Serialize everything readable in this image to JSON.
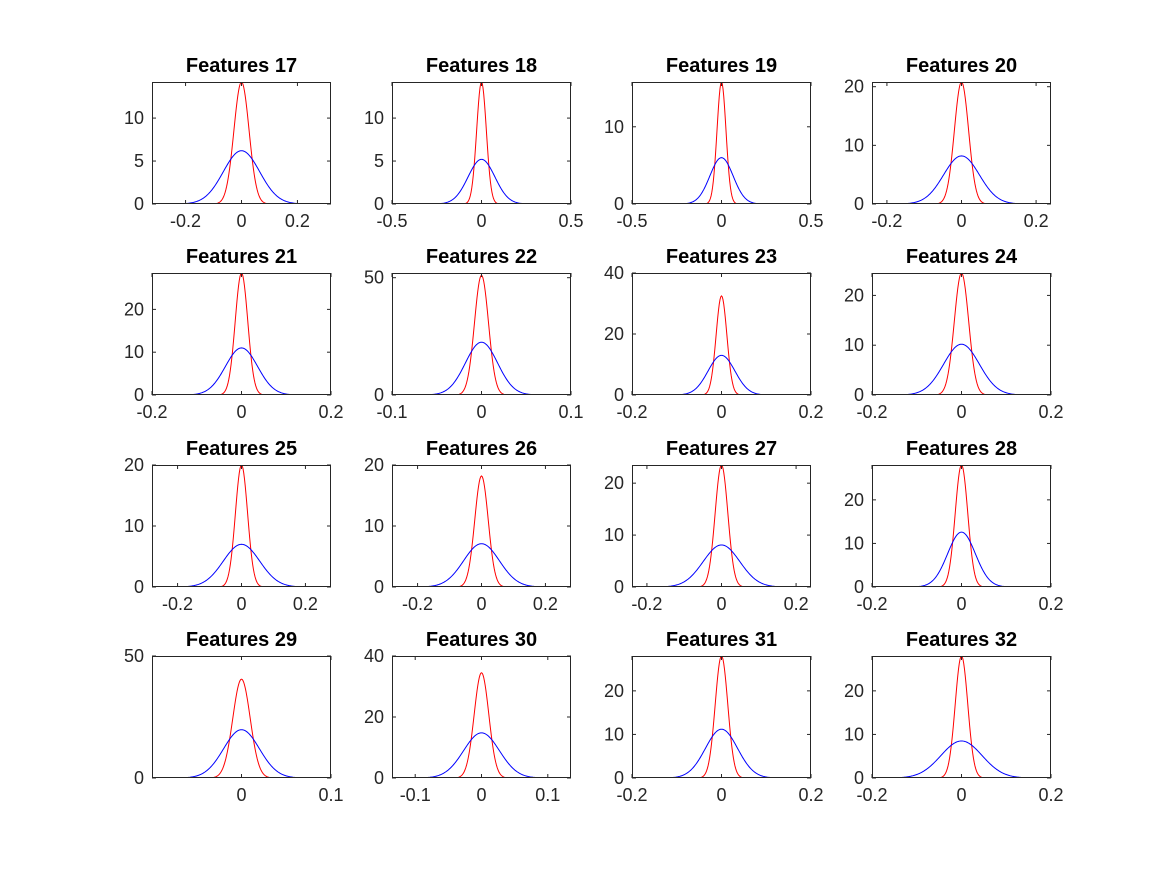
{
  "figure": {
    "background": "#ffffff"
  },
  "chart_data": [
    {
      "type": "line",
      "title": "Features 17",
      "xlim": [
        -0.32,
        0.32
      ],
      "ylim": [
        0,
        14.2
      ],
      "xticks": [
        -0.2,
        0,
        0.2
      ],
      "xtick_labels": [
        "-0.2",
        "0",
        "0.2"
      ],
      "yticks": [
        0,
        5,
        10
      ],
      "ytick_labels": [
        "0",
        "5",
        "10"
      ],
      "grid": false,
      "series": [
        {
          "color": "#ff0000",
          "mu": 0,
          "sigma": 0.027,
          "peak": 14.2
        },
        {
          "color": "#0000ff",
          "mu": 0,
          "sigma": 0.065,
          "peak": 6.2
        }
      ]
    },
    {
      "type": "line",
      "title": "Features 18",
      "xlim": [
        -0.5,
        0.5
      ],
      "ylim": [
        0,
        14.2
      ],
      "xticks": [
        -0.5,
        0,
        0.5
      ],
      "xtick_labels": [
        "-0.5",
        "0",
        "0.5"
      ],
      "yticks": [
        0,
        5,
        10
      ],
      "ytick_labels": [
        "0",
        "5",
        "10"
      ],
      "grid": false,
      "series": [
        {
          "color": "#ff0000",
          "mu": 0,
          "sigma": 0.027,
          "peak": 14.2
        },
        {
          "color": "#0000ff",
          "mu": 0,
          "sigma": 0.075,
          "peak": 5.2
        }
      ]
    },
    {
      "type": "line",
      "title": "Features 19",
      "xlim": [
        -0.5,
        0.5
      ],
      "ylim": [
        0,
        15.8
      ],
      "xticks": [
        -0.5,
        0,
        0.5
      ],
      "xtick_labels": [
        "-0.5",
        "0",
        "0.5"
      ],
      "yticks": [
        0,
        10
      ],
      "ytick_labels": [
        "0",
        "10"
      ],
      "grid": false,
      "series": [
        {
          "color": "#ff0000",
          "mu": 0,
          "sigma": 0.025,
          "peak": 15.8
        },
        {
          "color": "#0000ff",
          "mu": 0,
          "sigma": 0.065,
          "peak": 6.0
        }
      ]
    },
    {
      "type": "line",
      "title": "Features 20",
      "xlim": [
        -0.24,
        0.24
      ],
      "ylim": [
        0,
        20.8
      ],
      "xticks": [
        -0.2,
        0,
        0.2
      ],
      "xtick_labels": [
        "-0.2",
        "0",
        "0.2"
      ],
      "yticks": [
        0,
        10,
        20
      ],
      "ytick_labels": [
        "0",
        "10",
        "20"
      ],
      "grid": false,
      "series": [
        {
          "color": "#ff0000",
          "mu": 0,
          "sigma": 0.019,
          "peak": 20.8
        },
        {
          "color": "#0000ff",
          "mu": 0,
          "sigma": 0.048,
          "peak": 8.2
        }
      ]
    },
    {
      "type": "line",
      "title": "Features 21",
      "xlim": [
        -0.2,
        0.2
      ],
      "ylim": [
        0,
        28.5
      ],
      "xticks": [
        -0.2,
        0,
        0.2
      ],
      "xtick_labels": [
        "-0.2",
        "0",
        "0.2"
      ],
      "yticks": [
        0,
        10,
        20
      ],
      "ytick_labels": [
        "0",
        "10",
        "20"
      ],
      "grid": false,
      "series": [
        {
          "color": "#ff0000",
          "mu": 0,
          "sigma": 0.014,
          "peak": 28.5
        },
        {
          "color": "#0000ff",
          "mu": 0,
          "sigma": 0.036,
          "peak": 11.0
        }
      ]
    },
    {
      "type": "line",
      "title": "Features 22",
      "xlim": [
        -0.1,
        0.1
      ],
      "ylim": [
        0,
        52
      ],
      "xticks": [
        -0.1,
        0,
        0.1
      ],
      "xtick_labels": [
        "-0.1",
        "0",
        "0.1"
      ],
      "yticks": [
        0,
        50
      ],
      "ytick_labels": [
        "0",
        "50"
      ],
      "grid": false,
      "series": [
        {
          "color": "#ff0000",
          "mu": 0,
          "sigma": 0.0078,
          "peak": 51
        },
        {
          "color": "#0000ff",
          "mu": 0,
          "sigma": 0.018,
          "peak": 22.5
        }
      ]
    },
    {
      "type": "line",
      "title": "Features 23",
      "xlim": [
        -0.2,
        0.2
      ],
      "ylim": [
        0,
        40
      ],
      "xticks": [
        -0.2,
        0,
        0.2
      ],
      "xtick_labels": [
        "-0.2",
        "0",
        "0.2"
      ],
      "yticks": [
        0,
        20,
        40
      ],
      "ytick_labels": [
        "0",
        "20",
        "40"
      ],
      "grid": false,
      "series": [
        {
          "color": "#ff0000",
          "mu": 0,
          "sigma": 0.012,
          "peak": 32.5
        },
        {
          "color": "#0000ff",
          "mu": 0,
          "sigma": 0.03,
          "peak": 13.0
        }
      ]
    },
    {
      "type": "line",
      "title": "Features 24",
      "xlim": [
        -0.2,
        0.2
      ],
      "ylim": [
        0,
        24.5
      ],
      "xticks": [
        -0.2,
        0,
        0.2
      ],
      "xtick_labels": [
        "-0.2",
        "0",
        "0.2"
      ],
      "yticks": [
        0,
        10,
        20
      ],
      "ytick_labels": [
        "0",
        "10",
        "20"
      ],
      "grid": false,
      "series": [
        {
          "color": "#ff0000",
          "mu": 0,
          "sigma": 0.016,
          "peak": 24.5
        },
        {
          "color": "#0000ff",
          "mu": 0,
          "sigma": 0.04,
          "peak": 10.2
        }
      ]
    },
    {
      "type": "line",
      "title": "Features 25",
      "xlim": [
        -0.28,
        0.28
      ],
      "ylim": [
        0,
        20
      ],
      "xticks": [
        -0.2,
        0,
        0.2
      ],
      "xtick_labels": [
        "-0.2",
        "0",
        "0.2"
      ],
      "yticks": [
        0,
        10,
        20
      ],
      "ytick_labels": [
        "0",
        "10",
        "20"
      ],
      "grid": false,
      "series": [
        {
          "color": "#ff0000",
          "mu": 0,
          "sigma": 0.019,
          "peak": 20
        },
        {
          "color": "#0000ff",
          "mu": 0,
          "sigma": 0.057,
          "peak": 7.0
        }
      ]
    },
    {
      "type": "line",
      "title": "Features 26",
      "xlim": [
        -0.28,
        0.28
      ],
      "ylim": [
        0,
        20
      ],
      "xticks": [
        -0.2,
        0,
        0.2
      ],
      "xtick_labels": [
        "-0.2",
        "0",
        "0.2"
      ],
      "yticks": [
        0,
        10,
        20
      ],
      "ytick_labels": [
        "0",
        "10",
        "20"
      ],
      "grid": false,
      "series": [
        {
          "color": "#ff0000",
          "mu": 0,
          "sigma": 0.021,
          "peak": 18.2
        },
        {
          "color": "#0000ff",
          "mu": 0,
          "sigma": 0.056,
          "peak": 7.1
        }
      ]
    },
    {
      "type": "line",
      "title": "Features 27",
      "xlim": [
        -0.24,
        0.24
      ],
      "ylim": [
        0,
        23.5
      ],
      "xticks": [
        -0.2,
        0,
        0.2
      ],
      "xtick_labels": [
        "-0.2",
        "0",
        "0.2"
      ],
      "yticks": [
        0,
        10,
        20
      ],
      "ytick_labels": [
        "0",
        "10",
        "20"
      ],
      "grid": false,
      "series": [
        {
          "color": "#ff0000",
          "mu": 0,
          "sigma": 0.017,
          "peak": 23.5
        },
        {
          "color": "#0000ff",
          "mu": 0,
          "sigma": 0.049,
          "peak": 8.1
        }
      ]
    },
    {
      "type": "line",
      "title": "Features 28",
      "xlim": [
        -0.2,
        0.2
      ],
      "ylim": [
        0,
        28
      ],
      "xticks": [
        -0.2,
        0,
        0.2
      ],
      "xtick_labels": [
        "-0.2",
        "0",
        "0.2"
      ],
      "yticks": [
        0,
        10,
        20
      ],
      "ytick_labels": [
        "0",
        "10",
        "20"
      ],
      "grid": false,
      "series": [
        {
          "color": "#ff0000",
          "mu": 0,
          "sigma": 0.014,
          "peak": 28
        },
        {
          "color": "#0000ff",
          "mu": 0,
          "sigma": 0.031,
          "peak": 12.6
        }
      ]
    },
    {
      "type": "line",
      "title": "Features 29",
      "xlim": [
        -0.1,
        0.1
      ],
      "ylim": [
        0,
        50
      ],
      "xticks": [
        0,
        0.1
      ],
      "xtick_labels": [
        "0",
        "0.1"
      ],
      "yticks": [
        0,
        50
      ],
      "ytick_labels": [
        "0",
        "50"
      ],
      "grid": false,
      "series": [
        {
          "color": "#ff0000",
          "mu": 0,
          "sigma": 0.0097,
          "peak": 40.5
        },
        {
          "color": "#0000ff",
          "mu": 0,
          "sigma": 0.02,
          "peak": 19.8
        }
      ]
    },
    {
      "type": "line",
      "title": "Features 30",
      "xlim": [
        -0.135,
        0.135
      ],
      "ylim": [
        0,
        40
      ],
      "xticks": [
        -0.1,
        0,
        0.1
      ],
      "xtick_labels": [
        "-0.1",
        "0",
        "0.1"
      ],
      "yticks": [
        0,
        20,
        40
      ],
      "ytick_labels": [
        "0",
        "20",
        "40"
      ],
      "grid": false,
      "series": [
        {
          "color": "#ff0000",
          "mu": 0,
          "sigma": 0.011,
          "peak": 34.5
        },
        {
          "color": "#0000ff",
          "mu": 0,
          "sigma": 0.027,
          "peak": 14.8
        }
      ]
    },
    {
      "type": "line",
      "title": "Features 31",
      "xlim": [
        -0.2,
        0.2
      ],
      "ylim": [
        0,
        28
      ],
      "xticks": [
        -0.2,
        0,
        0.2
      ],
      "xtick_labels": [
        "-0.2",
        "0",
        "0.2"
      ],
      "yticks": [
        0,
        10,
        20
      ],
      "ytick_labels": [
        "0",
        "10",
        "20"
      ],
      "grid": false,
      "series": [
        {
          "color": "#ff0000",
          "mu": 0,
          "sigma": 0.014,
          "peak": 28
        },
        {
          "color": "#0000ff",
          "mu": 0,
          "sigma": 0.036,
          "peak": 11.2
        }
      ]
    },
    {
      "type": "line",
      "title": "Features 32",
      "xlim": [
        -0.2,
        0.2
      ],
      "ylim": [
        0,
        28
      ],
      "xticks": [
        -0.2,
        0,
        0.2
      ],
      "xtick_labels": [
        "-0.2",
        "0",
        "0.2"
      ],
      "yticks": [
        0,
        10,
        20
      ],
      "ytick_labels": [
        "0",
        "10",
        "20"
      ],
      "grid": false,
      "series": [
        {
          "color": "#ff0000",
          "mu": 0,
          "sigma": 0.014,
          "peak": 28
        },
        {
          "color": "#0000ff",
          "mu": 0,
          "sigma": 0.046,
          "peak": 8.5
        }
      ]
    }
  ]
}
